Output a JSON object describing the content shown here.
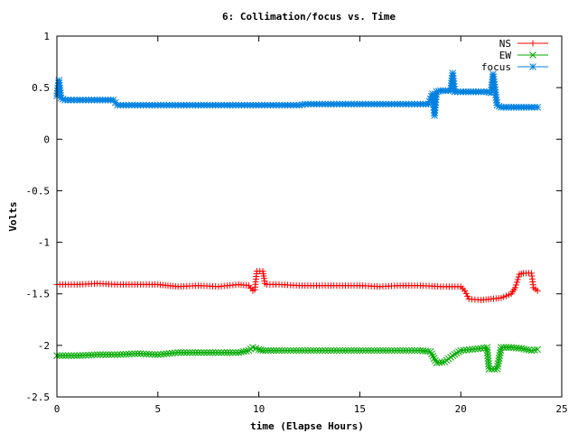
{
  "chart_data": {
    "type": "line",
    "title": "6: Collimation/focus vs. Time",
    "xlabel": "time (Elapse Hours)",
    "ylabel": "Volts",
    "xlim": [
      0,
      25
    ],
    "ylim": [
      -2.5,
      1
    ],
    "x_ticks": [
      "0",
      "5",
      "10",
      "15",
      "20",
      "25"
    ],
    "y_ticks": [
      "1",
      "0.5",
      "0",
      "-0.5",
      "-1",
      "-1.5",
      "-2",
      "-2.5"
    ],
    "grid": false,
    "legend_position": "top-right",
    "series": [
      {
        "name": "NS",
        "color": "#ff0000",
        "marker": "plus",
        "x": [
          0,
          1,
          2,
          3,
          4,
          5,
          5.5,
          6,
          7,
          8,
          9,
          9.5,
          9.7,
          9.8,
          9.9,
          10.2,
          10.3,
          10.4,
          11,
          12,
          13,
          14,
          15,
          16,
          17,
          18,
          19,
          20,
          20.2,
          20.4,
          21,
          21.5,
          22,
          22.5,
          22.7,
          22.9,
          23.1,
          23.5,
          23.6,
          23.8
        ],
        "y": [
          -1.41,
          -1.41,
          -1.4,
          -1.41,
          -1.41,
          -1.41,
          -1.42,
          -1.43,
          -1.42,
          -1.43,
          -1.41,
          -1.42,
          -1.47,
          -1.46,
          -1.28,
          -1.28,
          -1.4,
          -1.41,
          -1.41,
          -1.42,
          -1.42,
          -1.42,
          -1.42,
          -1.43,
          -1.42,
          -1.42,
          -1.43,
          -1.43,
          -1.47,
          -1.55,
          -1.56,
          -1.55,
          -1.54,
          -1.5,
          -1.44,
          -1.31,
          -1.3,
          -1.3,
          -1.44,
          -1.47
        ]
      },
      {
        "name": "EW",
        "color": "#00aa00",
        "marker": "cross",
        "x": [
          0,
          1,
          2,
          3,
          4,
          5,
          6,
          7,
          8,
          9,
          9.5,
          9.7,
          10.0,
          10.2,
          11,
          12,
          13,
          14,
          15,
          16,
          17,
          18,
          18.5,
          18.8,
          19.2,
          19.6,
          20,
          21,
          21.3,
          21.4,
          21.8,
          22,
          22.5,
          23,
          23.5,
          23.8
        ],
        "y": [
          -2.1,
          -2.1,
          -2.09,
          -2.09,
          -2.08,
          -2.09,
          -2.07,
          -2.07,
          -2.07,
          -2.07,
          -2.05,
          -2.02,
          -2.04,
          -2.05,
          -2.05,
          -2.05,
          -2.05,
          -2.05,
          -2.05,
          -2.05,
          -2.05,
          -2.05,
          -2.06,
          -2.17,
          -2.16,
          -2.1,
          -2.05,
          -2.03,
          -2.02,
          -2.23,
          -2.23,
          -2.02,
          -2.02,
          -2.03,
          -2.05,
          -2.04
        ]
      },
      {
        "name": "focus",
        "color": "#0080e0",
        "marker": "star",
        "x": [
          0,
          0.1,
          0.2,
          0.4,
          1,
          2,
          2.8,
          3.0,
          4,
          5,
          6,
          7,
          8,
          9,
          10,
          11,
          12,
          12.3,
          13,
          14,
          15,
          16,
          17,
          18,
          18.4,
          18.6,
          18.7,
          18.8,
          19.0,
          19.5,
          19.6,
          19.7,
          20,
          20.5,
          21,
          21.3,
          21.5,
          21.6,
          21.8,
          22,
          22.5,
          23,
          23.5,
          23.8
        ],
        "y": [
          0.42,
          0.57,
          0.4,
          0.38,
          0.38,
          0.38,
          0.38,
          0.33,
          0.33,
          0.33,
          0.33,
          0.33,
          0.33,
          0.33,
          0.33,
          0.33,
          0.33,
          0.34,
          0.34,
          0.34,
          0.34,
          0.34,
          0.34,
          0.34,
          0.34,
          0.44,
          0.23,
          0.46,
          0.47,
          0.47,
          0.64,
          0.46,
          0.46,
          0.46,
          0.46,
          0.46,
          0.45,
          0.63,
          0.33,
          0.31,
          0.31,
          0.31,
          0.31,
          0.31
        ]
      }
    ]
  }
}
